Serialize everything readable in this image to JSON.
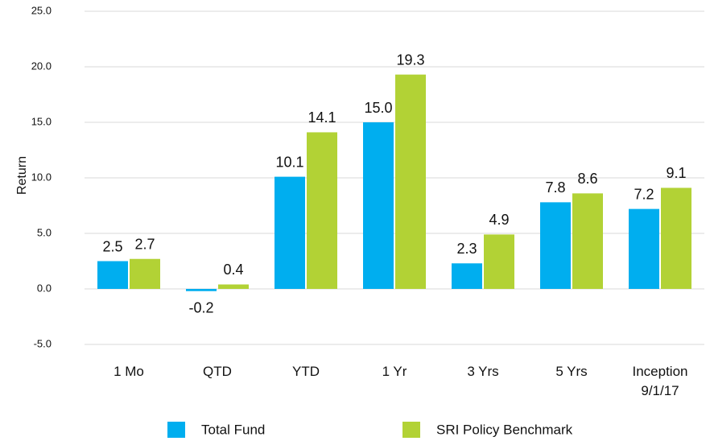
{
  "chart_data": {
    "type": "bar",
    "y_label": "Return",
    "categories": [
      "1 Mo",
      "QTD",
      "YTD",
      "1 Yr",
      "3 Yrs",
      "5 Yrs",
      "Inception\n9/1/17"
    ],
    "series": [
      {
        "name": "Total Fund",
        "color": "#00aeef",
        "values": [
          2.5,
          -0.2,
          10.1,
          15.0,
          2.3,
          7.8,
          7.2
        ],
        "value_labels": [
          "2.5",
          "-0.2",
          "10.1",
          "15.0",
          "2.3",
          "7.8",
          "7.2"
        ]
      },
      {
        "name": "SRI Policy Benchmark",
        "color": "#b2d235",
        "values": [
          2.7,
          0.4,
          14.1,
          19.3,
          4.9,
          8.6,
          9.1
        ],
        "value_labels": [
          "2.7",
          "0.4",
          "14.1",
          "19.3",
          "4.9",
          "8.6",
          "9.1"
        ]
      }
    ],
    "ylim": [
      -5,
      25
    ],
    "yticks": [
      {
        "value": -5,
        "label": "-5.0"
      },
      {
        "value": 0,
        "label": "0.0"
      },
      {
        "value": 5,
        "label": "5.0"
      },
      {
        "value": 10,
        "label": "10.0"
      },
      {
        "value": 15,
        "label": "15.0"
      },
      {
        "value": 20,
        "label": "20.0"
      },
      {
        "value": 25,
        "label": "25.0"
      }
    ],
    "grid": true
  }
}
